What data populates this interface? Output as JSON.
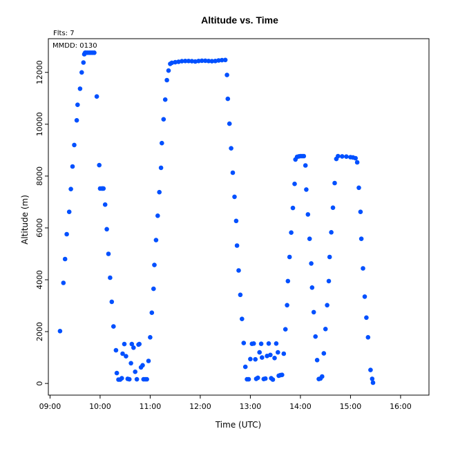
{
  "chart_data": {
    "type": "scatter",
    "title": "Altitude  vs. Time",
    "corner_label": "Flts: 7",
    "inset_label": "MMDD: 0130",
    "xlabel": "Time (UTC)",
    "ylabel": "Altitude (m)",
    "xlim": [
      "08:58",
      "16:34"
    ],
    "ylim": [
      -450,
      13300
    ],
    "x_ticks": [
      "09:00",
      "10:00",
      "11:00",
      "12:00",
      "13:00",
      "14:00",
      "15:00",
      "16:00"
    ],
    "y_ticks": [
      0,
      2000,
      4000,
      6000,
      8000,
      10000,
      12000
    ],
    "grid": false,
    "marker_color": "#0050ff",
    "series": [
      {
        "points": [
          [
            "09:12",
            2020
          ],
          [
            "09:16",
            3880
          ],
          [
            "09:18",
            4800
          ],
          [
            "09:20",
            5760
          ],
          [
            "09:23",
            6620
          ],
          [
            "09:25",
            7500
          ],
          [
            "09:27",
            8370
          ],
          [
            "09:29",
            9200
          ],
          [
            "09:32",
            10150
          ],
          [
            "09:33",
            10750
          ],
          [
            "09:36",
            11370
          ],
          [
            "09:38",
            12000
          ],
          [
            "09:40",
            12380
          ],
          [
            "09:41",
            12700
          ],
          [
            "09:42",
            12760
          ],
          [
            "09:43",
            12760
          ],
          [
            "09:45",
            12760
          ],
          [
            "09:47",
            12760
          ],
          [
            "09:49",
            12760
          ],
          [
            "09:51",
            12760
          ],
          [
            "09:53",
            12760
          ],
          [
            "09:56",
            11070
          ],
          [
            "09:59",
            8420
          ],
          [
            "10:00",
            7520
          ],
          [
            "10:02",
            7520
          ],
          [
            "10:03",
            7520
          ],
          [
            "10:04",
            7520
          ],
          [
            "10:06",
            6900
          ],
          [
            "10:08",
            5950
          ],
          [
            "10:10",
            5000
          ],
          [
            "10:12",
            4080
          ],
          [
            "10:14",
            3150
          ],
          [
            "10:16",
            2200
          ],
          [
            "10:19",
            1280
          ],
          [
            "10:20",
            400
          ],
          [
            "10:22",
            150
          ],
          [
            "10:24",
            150
          ],
          [
            "10:26",
            200
          ],
          [
            "10:27",
            1150
          ],
          [
            "10:29",
            1520
          ],
          [
            "10:31",
            1050
          ],
          [
            "10:33",
            180
          ],
          [
            "10:35",
            160
          ],
          [
            "10:37",
            780
          ],
          [
            "10:38",
            1520
          ],
          [
            "10:40",
            1380
          ],
          [
            "10:42",
            450
          ],
          [
            "10:44",
            160
          ],
          [
            "10:46",
            1500
          ],
          [
            "10:47",
            1520
          ],
          [
            "10:49",
            620
          ],
          [
            "10:51",
            700
          ],
          [
            "10:52",
            160
          ],
          [
            "10:54",
            160
          ],
          [
            "10:56",
            160
          ],
          [
            "10:58",
            870
          ],
          [
            "11:00",
            1780
          ],
          [
            "11:02",
            2730
          ],
          [
            "11:04",
            3650
          ],
          [
            "11:05",
            4570
          ],
          [
            "11:07",
            5530
          ],
          [
            "11:09",
            6470
          ],
          [
            "11:11",
            7380
          ],
          [
            "11:13",
            8320
          ],
          [
            "11:14",
            9270
          ],
          [
            "11:16",
            10190
          ],
          [
            "11:18",
            10950
          ],
          [
            "11:20",
            11700
          ],
          [
            "11:22",
            12070
          ],
          [
            "11:24",
            12330
          ],
          [
            "11:26",
            12370
          ],
          [
            "11:30",
            12390
          ],
          [
            "11:34",
            12410
          ],
          [
            "11:38",
            12430
          ],
          [
            "11:42",
            12440
          ],
          [
            "11:46",
            12440
          ],
          [
            "11:50",
            12430
          ],
          [
            "11:54",
            12420
          ],
          [
            "11:58",
            12440
          ],
          [
            "12:02",
            12450
          ],
          [
            "12:06",
            12450
          ],
          [
            "12:10",
            12440
          ],
          [
            "12:14",
            12430
          ],
          [
            "12:18",
            12440
          ],
          [
            "12:22",
            12460
          ],
          [
            "12:26",
            12470
          ],
          [
            "12:30",
            12480
          ],
          [
            "12:32",
            11900
          ],
          [
            "12:33",
            10980
          ],
          [
            "12:35",
            10020
          ],
          [
            "12:37",
            9070
          ],
          [
            "12:39",
            8130
          ],
          [
            "12:41",
            7200
          ],
          [
            "12:43",
            6270
          ],
          [
            "12:44",
            5320
          ],
          [
            "12:46",
            4360
          ],
          [
            "12:48",
            3420
          ],
          [
            "12:50",
            2490
          ],
          [
            "12:52",
            1560
          ],
          [
            "12:54",
            640
          ],
          [
            "12:56",
            160
          ],
          [
            "12:58",
            160
          ],
          [
            "13:00",
            940
          ],
          [
            "13:02",
            1530
          ],
          [
            "13:04",
            1540
          ],
          [
            "13:06",
            930
          ],
          [
            "13:07",
            180
          ],
          [
            "13:09",
            220
          ],
          [
            "13:11",
            1200
          ],
          [
            "13:13",
            1530
          ],
          [
            "13:14",
            1000
          ],
          [
            "13:16",
            170
          ],
          [
            "13:18",
            190
          ],
          [
            "13:20",
            1060
          ],
          [
            "13:22",
            1540
          ],
          [
            "13:24",
            1100
          ],
          [
            "13:25",
            200
          ],
          [
            "13:27",
            150
          ],
          [
            "13:29",
            980
          ],
          [
            "13:31",
            1540
          ],
          [
            "13:33",
            1200
          ],
          [
            "13:34",
            300
          ],
          [
            "13:36",
            320
          ],
          [
            "13:38",
            330
          ],
          [
            "13:40",
            1150
          ],
          [
            "13:42",
            2090
          ],
          [
            "13:44",
            3020
          ],
          [
            "13:45",
            3950
          ],
          [
            "13:47",
            4880
          ],
          [
            "13:49",
            5820
          ],
          [
            "13:51",
            6770
          ],
          [
            "13:53",
            7700
          ],
          [
            "13:54",
            8640
          ],
          [
            "13:56",
            8740
          ],
          [
            "13:58",
            8760
          ],
          [
            "14:00",
            8770
          ],
          [
            "14:02",
            8770
          ],
          [
            "14:04",
            8770
          ],
          [
            "14:06",
            8410
          ],
          [
            "14:07",
            7480
          ],
          [
            "14:09",
            6520
          ],
          [
            "14:11",
            5580
          ],
          [
            "14:13",
            4630
          ],
          [
            "14:14",
            3700
          ],
          [
            "14:16",
            2750
          ],
          [
            "14:18",
            1810
          ],
          [
            "14:20",
            900
          ],
          [
            "14:22",
            170
          ],
          [
            "14:24",
            190
          ],
          [
            "14:26",
            270
          ],
          [
            "14:28",
            1160
          ],
          [
            "14:30",
            2100
          ],
          [
            "14:32",
            3020
          ],
          [
            "14:34",
            3950
          ],
          [
            "14:35",
            4880
          ],
          [
            "14:37",
            5830
          ],
          [
            "14:39",
            6780
          ],
          [
            "14:41",
            7730
          ],
          [
            "14:43",
            8660
          ],
          [
            "14:45",
            8770
          ],
          [
            "14:50",
            8760
          ],
          [
            "14:55",
            8750
          ],
          [
            "15:00",
            8730
          ],
          [
            "15:03",
            8720
          ],
          [
            "15:06",
            8690
          ],
          [
            "15:08",
            8530
          ],
          [
            "15:10",
            7550
          ],
          [
            "15:12",
            6620
          ],
          [
            "15:13",
            5580
          ],
          [
            "15:15",
            4440
          ],
          [
            "15:17",
            3350
          ],
          [
            "15:19",
            2540
          ],
          [
            "15:21",
            1780
          ],
          [
            "15:24",
            520
          ],
          [
            "15:26",
            180
          ],
          [
            "15:27",
            30
          ]
        ]
      }
    ]
  }
}
